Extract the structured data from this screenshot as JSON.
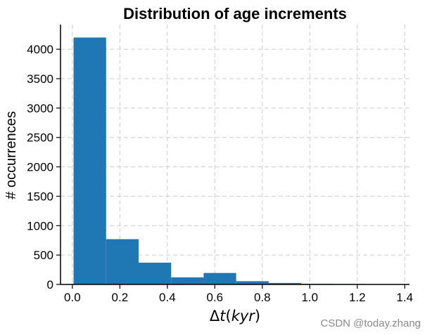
{
  "chart_data": {
    "type": "bar",
    "subtype": "histogram",
    "title": "Distribution of age increments",
    "xlabel_parts": {
      "delta": "Δ",
      "var": "t",
      "open": "(",
      "unit": "kyr",
      "close": ")"
    },
    "ylabel": "# occurrences",
    "bins": [
      {
        "start": 0.005,
        "end": 0.142,
        "count": 4200
      },
      {
        "start": 0.142,
        "end": 0.279,
        "count": 770
      },
      {
        "start": 0.279,
        "end": 0.416,
        "count": 370
      },
      {
        "start": 0.416,
        "end": 0.553,
        "count": 120
      },
      {
        "start": 0.553,
        "end": 0.69,
        "count": 195
      },
      {
        "start": 0.69,
        "end": 0.827,
        "count": 55
      },
      {
        "start": 0.827,
        "end": 0.964,
        "count": 25
      },
      {
        "start": 0.964,
        "end": 1.101,
        "count": 10
      },
      {
        "start": 1.101,
        "end": 1.238,
        "count": 8
      },
      {
        "start": 1.238,
        "end": 1.375,
        "count": 6
      }
    ],
    "xlim": [
      -0.05,
      1.42
    ],
    "ylim": [
      0,
      4420
    ],
    "xticks": [
      0.0,
      0.2,
      0.4,
      0.6,
      0.8,
      1.0,
      1.2,
      1.4
    ],
    "xtick_labels": [
      "0.0",
      "0.2",
      "0.4",
      "0.6",
      "0.8",
      "1.0",
      "1.2",
      "1.4"
    ],
    "yticks": [
      0,
      500,
      1000,
      1500,
      2000,
      2500,
      3000,
      3500,
      4000
    ],
    "ytick_labels": [
      "0",
      "500",
      "1000",
      "1500",
      "2000",
      "2500",
      "3000",
      "3500",
      "4000"
    ],
    "grid": true,
    "bar_color": "#1f77b4",
    "grid_color": "#cccccc"
  },
  "watermark": "CSDN @today.zhang"
}
